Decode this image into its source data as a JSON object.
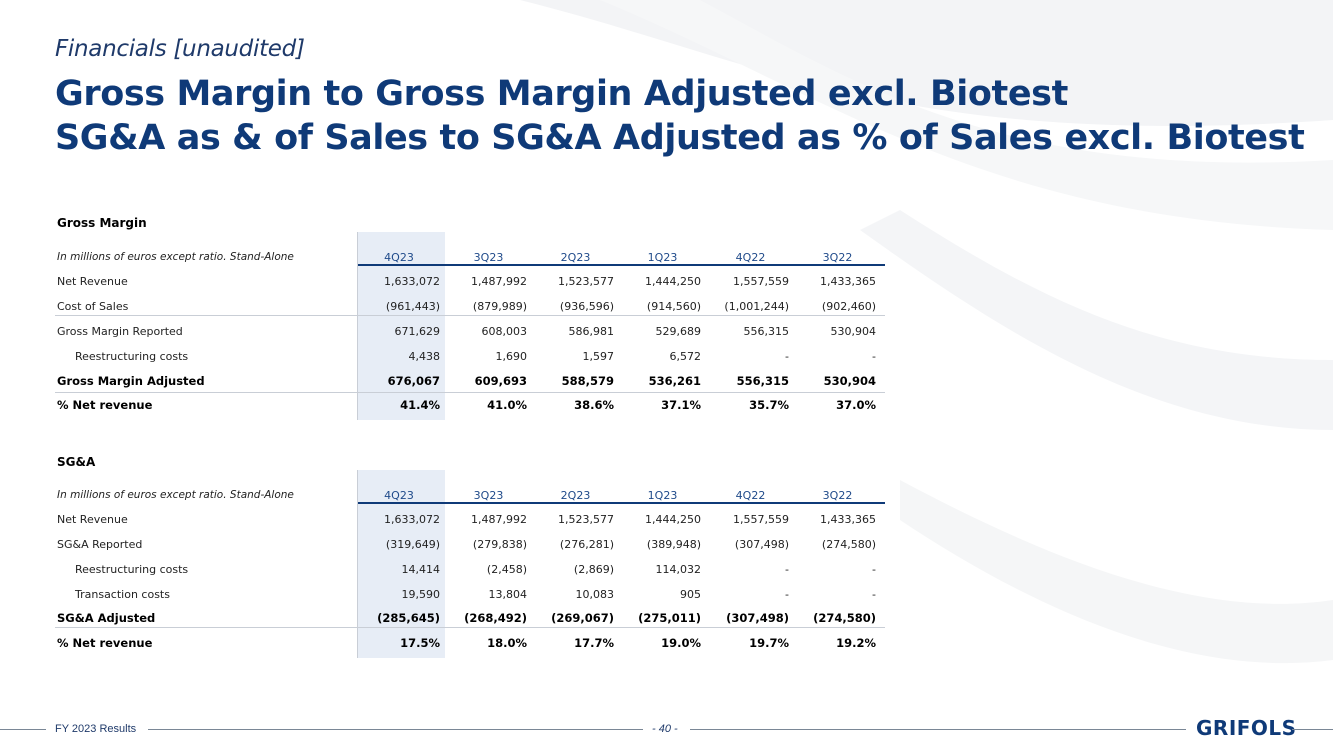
{
  "header": {
    "subtitle": "Financials [unaudited]",
    "title_line1": "Gross Margin to Gross Margin Adjusted excl. Biotest",
    "title_line2": "SG&A as & of Sales to SG&A Adjusted as % of Sales excl. Biotest"
  },
  "gross_margin": {
    "section_title": "Gross Margin",
    "header_label": "In millions of euros except ratio. Stand-Alone",
    "periods": [
      "4Q23",
      "3Q23",
      "2Q23",
      "1Q23",
      "4Q22",
      "3Q22"
    ],
    "rows": [
      {
        "label": "Net Revenue",
        "values": [
          "1,633,072",
          "1,487,992",
          "1,523,577",
          "1,444,250",
          "1,557,559",
          "1,433,365"
        ]
      },
      {
        "label": "Cost of Sales",
        "values": [
          "(961,443)",
          "(879,989)",
          "(936,596)",
          "(914,560)",
          "(1,001,244)",
          "(902,460)"
        ]
      },
      {
        "label": "Gross Margin Reported",
        "values": [
          "671,629",
          "608,003",
          "586,981",
          "529,689",
          "556,315",
          "530,904"
        ]
      },
      {
        "label": "Reestructuring costs",
        "values": [
          "4,438",
          "1,690",
          "1,597",
          "6,572",
          "-",
          "-"
        ]
      },
      {
        "label": "Gross Margin Adjusted",
        "values": [
          "676,067",
          "609,693",
          "588,579",
          "536,261",
          "556,315",
          "530,904"
        ]
      },
      {
        "label": "% Net revenue",
        "values": [
          "41.4%",
          "41.0%",
          "38.6%",
          "37.1%",
          "35.7%",
          "37.0%"
        ]
      }
    ]
  },
  "sga": {
    "section_title": "SG&A",
    "header_label": "In millions of euros except ratio. Stand-Alone",
    "periods": [
      "4Q23",
      "3Q23",
      "2Q23",
      "1Q23",
      "4Q22",
      "3Q22"
    ],
    "rows": [
      {
        "label": "Net Revenue",
        "values": [
          "1,633,072",
          "1,487,992",
          "1,523,577",
          "1,444,250",
          "1,557,559",
          "1,433,365"
        ]
      },
      {
        "label": "SG&A Reported",
        "values": [
          "(319,649)",
          "(279,838)",
          "(276,281)",
          "(389,948)",
          "(307,498)",
          "(274,580)"
        ]
      },
      {
        "label": "Reestructuring costs",
        "values": [
          "14,414",
          "(2,458)",
          "(2,869)",
          "114,032",
          "-",
          "-"
        ]
      },
      {
        "label": "Transaction costs",
        "values": [
          "19,590",
          "13,804",
          "10,083",
          "905",
          "-",
          "-"
        ]
      },
      {
        "label": "SG&A Adjusted",
        "values": [
          "(285,645)",
          "(268,492)",
          "(269,067)",
          "(275,011)",
          "(307,498)",
          "(274,580)"
        ]
      },
      {
        "label": "% Net revenue",
        "values": [
          "17.5%",
          "18.0%",
          "17.7%",
          "19.0%",
          "19.7%",
          "19.2%"
        ]
      }
    ]
  },
  "footer": {
    "left_text": "FY 2023 Results",
    "page_number": "- 40 -",
    "logo_text": "GRIFOLS"
  },
  "colors": {
    "title": "#0f3a78",
    "accent_line": "#0f3a78",
    "shade": "#e7edf6"
  }
}
